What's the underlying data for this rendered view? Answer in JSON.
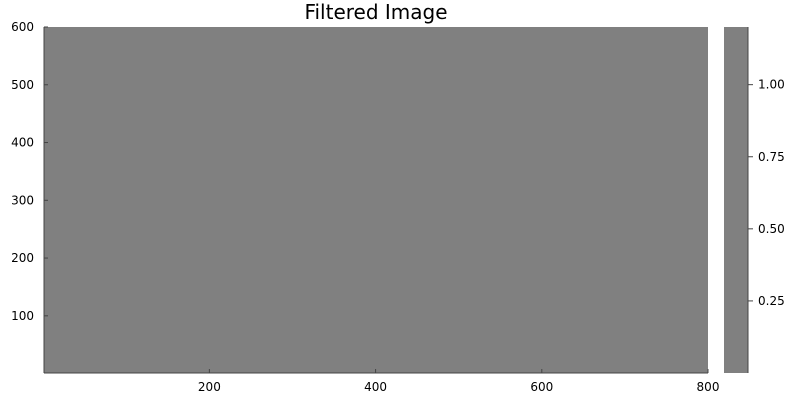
{
  "chart_data": {
    "type": "heatmap",
    "title": "Filtered Image",
    "xlabel": "",
    "ylabel": "",
    "xlim": [
      1,
      800
    ],
    "ylim": [
      1,
      600
    ],
    "x_ticks": [
      200,
      400,
      600,
      800
    ],
    "x_tick_labels": [
      "200",
      "400",
      "600",
      "800"
    ],
    "y_ticks": [
      100,
      200,
      300,
      400,
      500,
      600
    ],
    "y_tick_labels": [
      "100",
      "200",
      "300",
      "400",
      "500",
      "600"
    ],
    "image": {
      "width": 800,
      "height": 600,
      "uniform_value": 0.5,
      "fill_color": "#808080"
    },
    "colorbar": {
      "range": [
        0,
        1.2
      ],
      "ticks": [
        0.25,
        0.5,
        0.75,
        1.0
      ],
      "tick_labels": [
        "0.25",
        "0.50",
        "0.75",
        "1.00"
      ],
      "fill_color": "#808080"
    },
    "grid": false,
    "legend": "none",
    "colors": {
      "axis": "#000000",
      "frame": "#444444",
      "background": "#ffffff"
    }
  }
}
